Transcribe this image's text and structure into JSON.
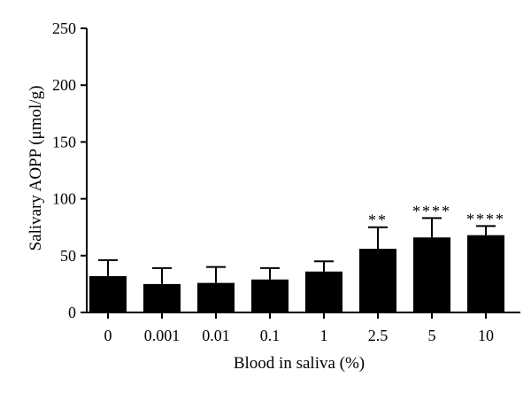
{
  "chart_data": {
    "type": "bar",
    "title": "",
    "xlabel": "Blood in saliva (%)",
    "ylabel": "Salivary AOPP (μmol/g)",
    "ylim": [
      0,
      250
    ],
    "yticks": [
      0,
      50,
      100,
      150,
      200,
      250
    ],
    "categories": [
      "0",
      "0.001",
      "0.01",
      "0.1",
      "1",
      "2.5",
      "5",
      "10"
    ],
    "values": [
      32,
      25,
      26,
      29,
      36,
      56,
      66,
      68
    ],
    "error_upper": [
      14,
      14,
      14,
      10,
      9,
      19,
      17,
      8
    ],
    "significance": [
      "",
      "",
      "",
      "",
      "",
      "**",
      "****",
      "****"
    ],
    "bar_color": "#000000",
    "grid": false,
    "legend": "none"
  }
}
